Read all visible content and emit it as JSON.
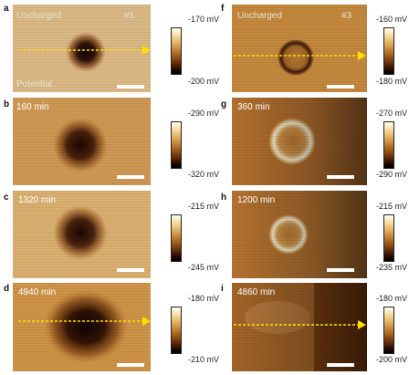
{
  "left_column": {
    "panels": [
      {
        "letter": "a",
        "label": "Uncharged",
        "id_tag": "#1",
        "footer": "Potential",
        "cbar_top": "-170 mV",
        "cbar_bottom": "-200 mV"
      },
      {
        "letter": "b",
        "label": "160 min",
        "cbar_top": "-290 mV",
        "cbar_bottom": "-320 mV"
      },
      {
        "letter": "c",
        "label": "1320 min",
        "cbar_top": "-215 mV",
        "cbar_bottom": "-245 mV"
      },
      {
        "letter": "d",
        "label": "4940 min",
        "cbar_top": "-180 mV",
        "cbar_bottom": "-210 mV"
      }
    ]
  },
  "right_column": {
    "panels": [
      {
        "letter": "f",
        "label": "Uncharged",
        "id_tag": "#3",
        "cbar_top": "-160 mV",
        "cbar_bottom": "-180 mV"
      },
      {
        "letter": "g",
        "label": "360 min",
        "cbar_top": "-270 mV",
        "cbar_bottom": "-290 mV"
      },
      {
        "letter": "h",
        "label": "1200 min",
        "cbar_top": "-215 mV",
        "cbar_bottom": "-235 mV"
      },
      {
        "letter": "i",
        "label": "4860 min",
        "cbar_top": "-180 mV",
        "cbar_bottom": "-200 mV"
      }
    ]
  },
  "colors": {
    "colormap": [
      "#fffff2",
      "#f5d79a",
      "#d9a050",
      "#a8621e",
      "#5e2a06",
      "#1b0702",
      "#000000"
    ],
    "arrow": "#ffe000"
  }
}
